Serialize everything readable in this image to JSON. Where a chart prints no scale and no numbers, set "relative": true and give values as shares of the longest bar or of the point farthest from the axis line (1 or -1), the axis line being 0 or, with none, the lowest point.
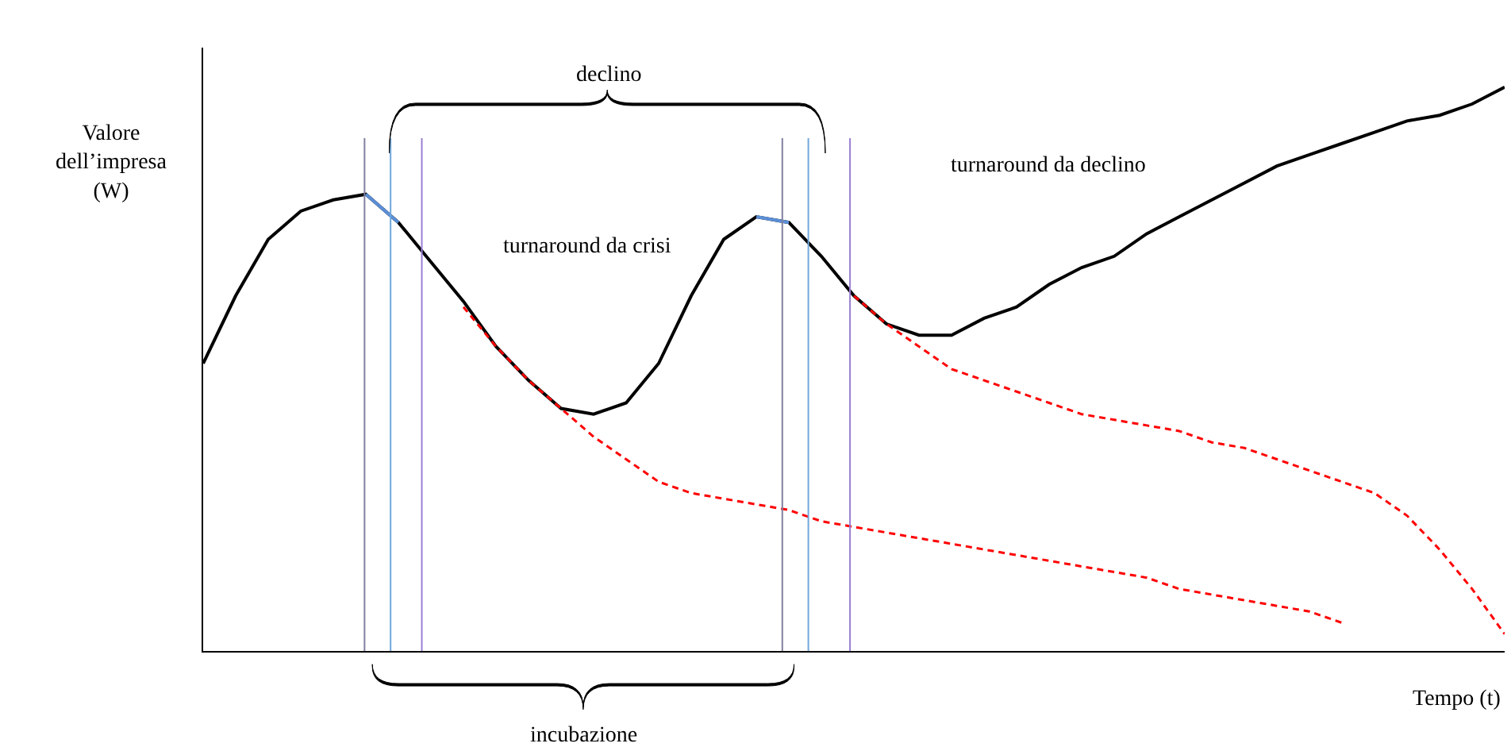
{
  "chart_data": {
    "type": "line",
    "relative": true,
    "xlabel": "Tempo (t)",
    "ylabel": "Valore dell’impresa (W)",
    "categories": [
      null,
      null,
      null,
      null,
      null,
      null,
      null,
      null,
      null,
      null,
      null,
      null,
      null,
      null,
      null,
      null,
      null,
      null,
      null,
      null,
      null,
      null,
      null,
      null,
      null,
      null,
      null,
      null,
      null,
      null,
      null,
      null,
      null,
      null,
      null,
      null,
      null,
      null,
      null,
      null,
      null
    ],
    "marker": "none",
    "annotations": [
      "declino",
      "incubazione",
      "turnaround da crisi",
      "turnaround da declino"
    ],
    "series": [
      {
        "color": "#000000",
        "line_style": "solid",
        "values": [
          0.51,
          0.63,
          0.73,
          0.78,
          0.8,
          0.81,
          0.76,
          0.69,
          0.62,
          0.54,
          0.48,
          0.43,
          0.42,
          0.44,
          0.51,
          0.63,
          0.73,
          0.77,
          0.76,
          0.7,
          0.63,
          0.58,
          0.56,
          0.56,
          0.59,
          0.61,
          0.65,
          0.68,
          0.7,
          0.74,
          0.77,
          0.8,
          0.83,
          0.86,
          0.88,
          0.9,
          0.92,
          0.94,
          0.95,
          0.97,
          1
        ]
      },
      {
        "color": "#ff0000",
        "line_style": "dashed",
        "values": [
          null,
          null,
          null,
          null,
          null,
          null,
          null,
          null,
          0.61,
          0.54,
          0.48,
          0.43,
          0.38,
          0.34,
          0.3,
          0.28,
          0.27,
          0.26,
          0.25,
          0.23,
          0.22,
          0.21,
          0.2,
          0.19,
          0.18,
          0.17,
          0.16,
          0.15,
          0.14,
          0.13,
          0.11,
          0.1,
          0.09,
          0.08,
          0.07,
          0.05,
          null,
          null,
          null,
          null,
          null
        ]
      },
      {
        "color": "#ff0000",
        "line_style": "dashed",
        "values": [
          null,
          null,
          null,
          null,
          null,
          null,
          null,
          null,
          null,
          null,
          null,
          null,
          null,
          null,
          null,
          null,
          null,
          null,
          null,
          null,
          0.63,
          0.58,
          0.54,
          0.5,
          0.48,
          0.46,
          0.44,
          0.42,
          0.41,
          0.4,
          0.39,
          0.37,
          0.36,
          0.34,
          0.32,
          0.3,
          0.28,
          0.24,
          0.18,
          0.11,
          0.03
        ]
      },
      {
        "color": "#5b8ed6",
        "line_style": "solid",
        "values": [
          null,
          null,
          null,
          null,
          null,
          0.81,
          0.76,
          null,
          null,
          null,
          null,
          null,
          null,
          null,
          null,
          null,
          null,
          null,
          null,
          null,
          null,
          null,
          null,
          null,
          null,
          null,
          null,
          null,
          null,
          null,
          null,
          null,
          null,
          null,
          null,
          null,
          null,
          null,
          null,
          null,
          null
        ]
      },
      {
        "color": "#5b8ed6",
        "line_style": "solid",
        "values": [
          null,
          null,
          null,
          null,
          null,
          null,
          null,
          null,
          null,
          null,
          null,
          null,
          null,
          null,
          null,
          null,
          null,
          0.77,
          0.76,
          null,
          null,
          null,
          null,
          null,
          null,
          null,
          null,
          null,
          null,
          null,
          null,
          null,
          null,
          null,
          null,
          null,
          null,
          null,
          null,
          null,
          null
        ]
      }
    ]
  }
}
